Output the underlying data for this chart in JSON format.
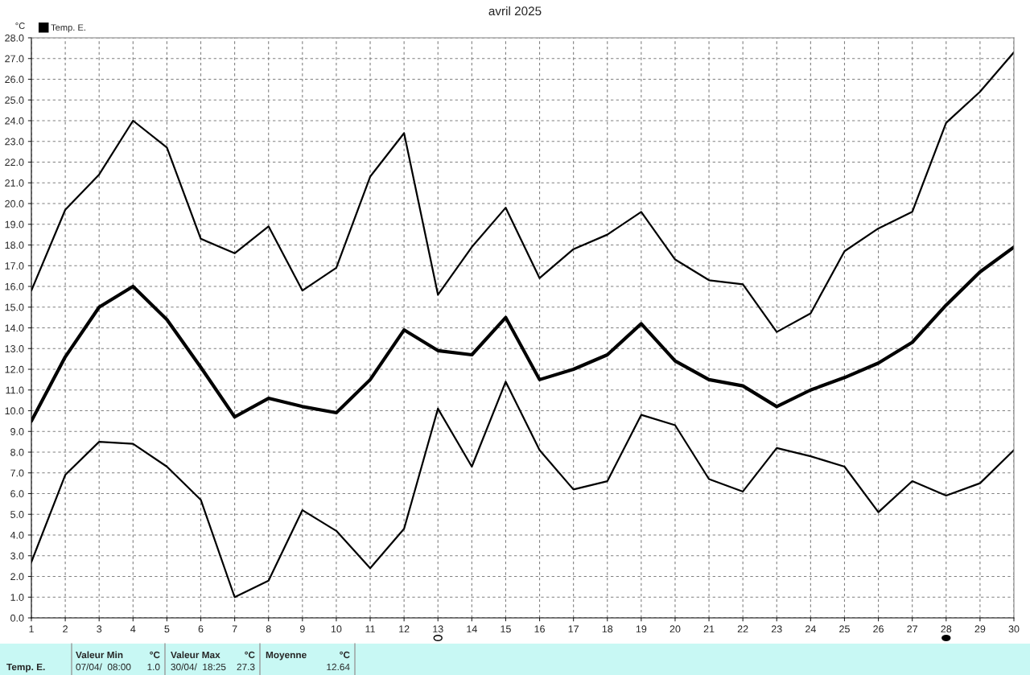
{
  "chart_data": {
    "type": "line",
    "title": "avril 2025",
    "ylabel": "°C",
    "x": [
      1,
      2,
      3,
      4,
      5,
      6,
      7,
      8,
      9,
      10,
      11,
      12,
      13,
      14,
      15,
      16,
      17,
      18,
      19,
      20,
      21,
      22,
      23,
      24,
      25,
      26,
      27,
      28,
      29,
      30
    ],
    "series": [
      {
        "color": "#000000",
        "values": [
          15.8,
          19.7,
          21.4,
          24.0,
          22.7,
          18.3,
          17.6,
          18.9,
          15.8,
          16.9,
          21.3,
          23.4,
          15.6,
          17.9,
          19.8,
          16.4,
          17.8,
          18.5,
          19.6,
          17.3,
          16.3,
          16.1,
          13.8,
          14.7,
          17.7,
          18.8,
          19.6,
          23.9,
          25.4,
          27.3
        ]
      },
      {
        "name": "Temp. E.",
        "color": "#000000",
        "values": [
          9.5,
          12.6,
          15.0,
          16.0,
          14.4,
          12.1,
          9.7,
          10.6,
          10.2,
          9.9,
          11.5,
          13.9,
          12.9,
          12.7,
          14.5,
          11.5,
          12.0,
          12.7,
          14.2,
          12.4,
          11.5,
          11.2,
          10.2,
          11.0,
          11.6,
          12.3,
          13.3,
          15.1,
          16.7,
          17.9
        ]
      },
      {
        "color": "#000000",
        "values": [
          2.7,
          6.9,
          8.5,
          8.4,
          7.3,
          5.7,
          1.0,
          1.8,
          5.2,
          4.2,
          2.4,
          4.3,
          10.1,
          7.3,
          11.4,
          8.1,
          6.2,
          6.6,
          9.8,
          9.3,
          6.7,
          6.1,
          8.2,
          7.8,
          7.3,
          5.1,
          6.6,
          5.9,
          6.5,
          8.1
        ]
      }
    ],
    "xlim": [
      1,
      30
    ],
    "xticks": [
      1,
      2,
      3,
      4,
      5,
      6,
      7,
      8,
      9,
      10,
      11,
      12,
      13,
      14,
      15,
      16,
      17,
      18,
      19,
      20,
      21,
      22,
      23,
      24,
      25,
      26,
      27,
      28,
      29,
      30
    ],
    "ylim": [
      0,
      28
    ],
    "yticks": [
      {
        "value": 0,
        "label": "0.0"
      },
      {
        "value": 1,
        "label": "1.0"
      },
      {
        "value": 2,
        "label": "2.0"
      },
      {
        "value": 3,
        "label": "3.0"
      },
      {
        "value": 4,
        "label": "4.0"
      },
      {
        "value": 5,
        "label": "5.0"
      },
      {
        "value": 6,
        "label": "6.0"
      },
      {
        "value": 7,
        "label": "7.0"
      },
      {
        "value": 8,
        "label": "8.0"
      },
      {
        "value": 9,
        "label": "9.0"
      },
      {
        "value": 10,
        "label": "10.0"
      },
      {
        "value": 11,
        "label": "11.0"
      },
      {
        "value": 12,
        "label": "12.0"
      },
      {
        "value": 13,
        "label": "13.0"
      },
      {
        "value": 14,
        "label": "14.0"
      },
      {
        "value": 15,
        "label": "15.0"
      },
      {
        "value": 16,
        "label": "16.0"
      },
      {
        "value": 17,
        "label": "17.0"
      },
      {
        "value": 18,
        "label": "18.0"
      },
      {
        "value": 19,
        "label": "19.0"
      },
      {
        "value": 20,
        "label": "20.0"
      },
      {
        "value": 21,
        "label": "21.0"
      },
      {
        "value": 22,
        "label": "22.0"
      },
      {
        "value": 23,
        "label": "23.0"
      },
      {
        "value": 24,
        "label": "24.0"
      },
      {
        "value": 25,
        "label": "25.0"
      },
      {
        "value": 26,
        "label": "26.0"
      },
      {
        "value": 27,
        "label": "27.0"
      },
      {
        "value": 28,
        "label": "28.0"
      }
    ],
    "grid": true,
    "legend": "top left",
    "marker": "none",
    "line_style": "solid",
    "annotations": [
      "Temp. E.",
      "Valeur Min",
      "°C",
      "07/04/  08:00",
      "1.0",
      "Valeur Max",
      "°C",
      "30/04/  18:25",
      "27.3",
      "Moyenne",
      "°C",
      "12.64"
    ]
  }
}
